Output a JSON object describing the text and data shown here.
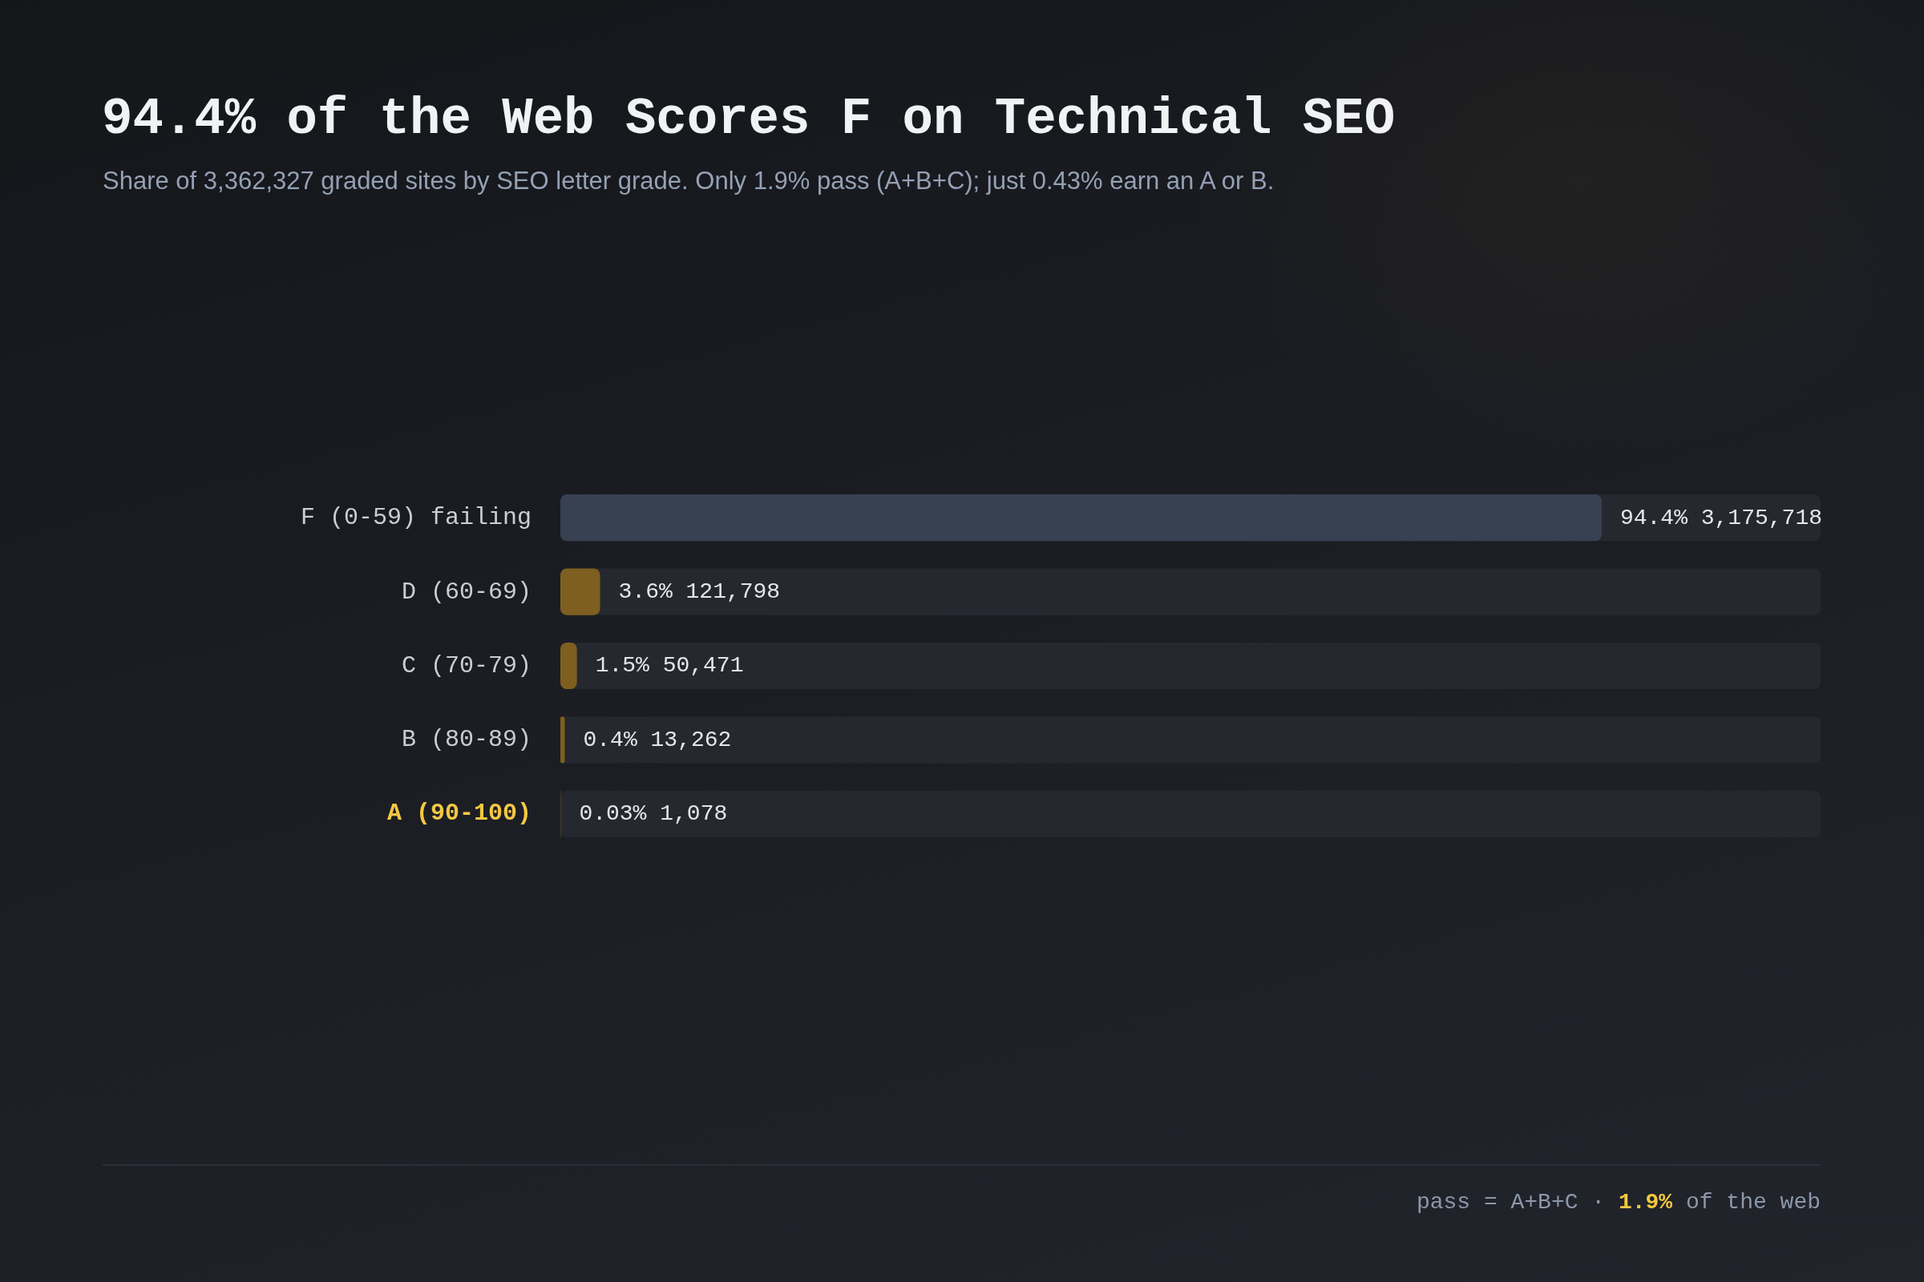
{
  "chart_data": {
    "type": "bar",
    "orientation": "horizontal",
    "title": "94.4% of the Web Scores F on Technical SEO",
    "subtitle": "Share of 3,362,327 graded sites by SEO letter grade. Only 1.9% pass (A+B+C); just 0.43% earn an A or B.",
    "categories": [
      "F (0-59) failing",
      "D (60-69)",
      "C (70-79)",
      "B (80-89)",
      "A (90-100)"
    ],
    "values": [
      94.4,
      3.6,
      1.5,
      0.4,
      0.03
    ],
    "colors": [
      "#384152",
      "#7f5f1f",
      "#7f5f1f",
      "#7f5f1f",
      "#7f5f1f"
    ],
    "value_labels": [
      "94.4% 3,175,718",
      "3.6% 121,798",
      "1.5% 50,471",
      "0.4% 13,262",
      "0.03% 1,078"
    ],
    "tick_labels": "y",
    "annotations": [
      "pass = A+B+C · 1.9% of the web"
    ]
  }
}
